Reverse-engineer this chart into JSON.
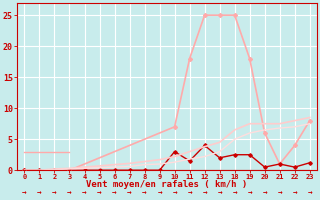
{
  "bg_color": "#c8ecec",
  "grid_color": "#ffffff",
  "xlabel_display": "Vent moyen/en rafales ( km/h )",
  "ylim": [
    0,
    27
  ],
  "yticks": [
    0,
    5,
    10,
    15,
    20,
    25
  ],
  "xtick_positions": [
    0,
    1,
    2,
    3,
    4,
    5,
    6,
    7,
    8,
    9,
    10,
    11,
    12,
    13,
    14,
    15,
    16,
    17,
    18,
    19
  ],
  "xtick_labels": [
    "0",
    "1",
    "2",
    "3",
    "4",
    "5",
    "6",
    "7",
    "8",
    "9",
    "10",
    "11",
    "12",
    "13",
    "18",
    "19",
    "20",
    "21",
    "22",
    "23"
  ],
  "series": [
    {
      "x": [
        0,
        3
      ],
      "y": [
        3,
        3
      ],
      "color": "#ffaaaa",
      "lw": 1.0,
      "marker": null
    },
    {
      "x": [
        0,
        3,
        10,
        11,
        12,
        13,
        14,
        15,
        16,
        17,
        18,
        19
      ],
      "y": [
        0,
        0,
        7,
        18,
        25,
        25,
        25,
        18,
        6,
        1,
        4,
        8
      ],
      "color": "#ffaaaa",
      "lw": 1.2,
      "marker": "D",
      "ms": 2.0
    },
    {
      "x": [
        0,
        1,
        2,
        3,
        4,
        5,
        6,
        7,
        8,
        9,
        10,
        11,
        12,
        13,
        14,
        15,
        16,
        17,
        18,
        19
      ],
      "y": [
        0,
        0,
        0,
        0,
        0,
        0,
        0,
        0,
        0,
        0,
        3,
        1.5,
        4,
        2,
        2.5,
        2.5,
        0.5,
        1,
        0.5,
        1.2
      ],
      "color": "#cc0000",
      "lw": 1.0,
      "marker": "D",
      "ms": 1.8
    },
    {
      "x": [
        0,
        1,
        2,
        3,
        4,
        5,
        6,
        7,
        8,
        9,
        10,
        11,
        12,
        13,
        14,
        15,
        16,
        17,
        18,
        19
      ],
      "y": [
        0,
        0,
        0.2,
        0.3,
        0.5,
        0.7,
        0.9,
        1.1,
        1.4,
        1.7,
        2.2,
        3.0,
        3.8,
        4.5,
        6.5,
        7.5,
        7.5,
        7.5,
        8.0,
        8.5
      ],
      "color": "#ffcccc",
      "lw": 1.2,
      "marker": null
    },
    {
      "x": [
        0,
        1,
        2,
        3,
        4,
        5,
        6,
        7,
        8,
        9,
        10,
        11,
        12,
        13,
        14,
        15,
        16,
        17,
        18,
        19
      ],
      "y": [
        0,
        0,
        0.1,
        0.2,
        0.3,
        0.4,
        0.5,
        0.6,
        0.9,
        1.0,
        1.3,
        1.8,
        2.2,
        3.0,
        5.0,
        6.0,
        6.5,
        6.8,
        7.0,
        7.5
      ],
      "color": "#ffdddd",
      "lw": 1.0,
      "marker": null
    },
    {
      "x": [
        0,
        1,
        2,
        3,
        4,
        5,
        6,
        7,
        8,
        9,
        10,
        11,
        12,
        13,
        14,
        15,
        16,
        17,
        18,
        19
      ],
      "y": [
        0,
        0,
        0,
        0,
        0,
        0,
        0,
        0,
        0,
        0,
        0,
        0,
        0,
        0,
        0,
        0,
        0,
        0,
        0,
        0
      ],
      "color": "#880000",
      "lw": 0.8,
      "marker": null
    }
  ],
  "arrow_color": "#cc0000",
  "tick_color": "#cc0000",
  "label_color": "#cc0000"
}
